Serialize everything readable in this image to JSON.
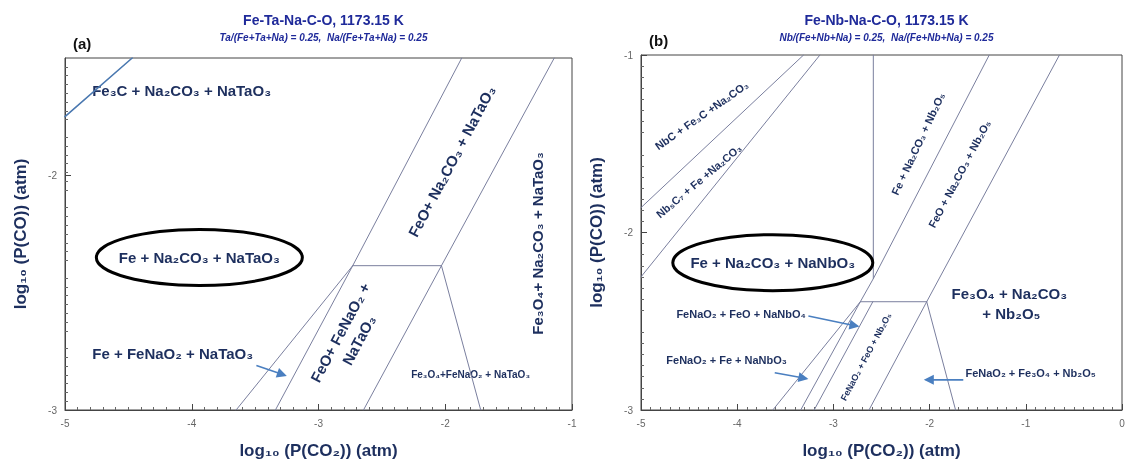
{
  "chart_data": [
    {
      "type": "line",
      "title": "Fe-Ta-Na-C-O, 1173.15 K",
      "subtitle": "Ta/(Fe+Ta+Na) = 0.25,  Na/(Fe+Ta+Na) = 0.25",
      "xlabel": "log₁₀ (P(CO₂)) (atm)",
      "ylabel": "log₁₀ (P(CO)) (atm)",
      "xlim": [
        -5,
        -1
      ],
      "ylim": [
        -3,
        -1.5
      ],
      "xticks": [
        -5,
        -4,
        -3,
        -2,
        -1
      ],
      "yticks": [
        -3,
        -2
      ],
      "grid": false,
      "marker": "none",
      "line_style": "solid",
      "series": [
        {
          "color": "#4a78b0",
          "x": [
            -5,
            -4.47
          ],
          "values": [
            -1.75,
            -1.5
          ]
        },
        {
          "color": "#7a7f9e",
          "x": [
            -1.87,
            -2.73,
            -3.34
          ],
          "values": [
            -1.5,
            -2.385,
            -3
          ]
        },
        {
          "color": "#7a7f9e",
          "x": [
            -2.73,
            -3.65
          ],
          "values": [
            -2.385,
            -3
          ]
        },
        {
          "color": "#7a7f9e",
          "x": [
            -2.73,
            -2.03
          ],
          "values": [
            -2.385,
            -2.385
          ]
        },
        {
          "color": "#7a7f9e",
          "x": [
            -1.14,
            -2.03,
            -2.645
          ],
          "values": [
            -1.5,
            -2.385,
            -3
          ]
        },
        {
          "color": "#7a7f9e",
          "x": [
            -2.03,
            -1.72
          ],
          "values": [
            -2.385,
            -3
          ]
        }
      ],
      "annotations": [
        "(a)",
        "Fe₃C + Na₂CO₃ + NaTaO₃",
        "FeO+ Na₂CO₃ + NaTaO₃",
        "Fe₃O₄+ Na₂CO₃ + NaTaO₃",
        "Fe + Na₂CO₃ + NaTaO₃",
        "FeO+ FeNaO₂ + NaTaO₃",
        "Fe + FeNaO₂ + NaTaO₃",
        "Fe₃O₄+FeNaO₂ + NaTaO₃"
      ]
    },
    {
      "type": "line",
      "title": "Fe-Nb-Na-C-O, 1173.15 K",
      "subtitle": "Nb/(Fe+Nb+Na) = 0.25,  Na/(Fe+Nb+Na) = 0.25",
      "xlabel": "log₁₀ (P(CO₂)) (atm)",
      "ylabel": "log₁₀ (P(CO)) (atm)",
      "xlim": [
        -5,
        0
      ],
      "ylim": [
        -3,
        -1
      ],
      "xticks": [
        -5,
        -4,
        -3,
        -2,
        -1,
        0
      ],
      "yticks": [
        -3,
        -2,
        -1
      ],
      "grid": false,
      "marker": "none",
      "line_style": "solid",
      "series": [
        {
          "color": "#7a7f9e",
          "x": [
            -5,
            -3.31
          ],
          "values": [
            -1.86,
            -1
          ]
        },
        {
          "color": "#7a7f9e",
          "x": [
            -5,
            -3.14
          ],
          "values": [
            -2.25,
            -1
          ]
        },
        {
          "color": "#7a7f9e",
          "x": [
            -2.585,
            -2.585,
            -2.72,
            -3.63
          ],
          "values": [
            -1,
            -2.26,
            -2.39,
            -3
          ]
        },
        {
          "color": "#7a7f9e",
          "x": [
            -1.38,
            -2.585
          ],
          "values": [
            -1,
            -2.26
          ]
        },
        {
          "color": "#7a7f9e",
          "x": [
            -2.72,
            -3.34
          ],
          "values": [
            -2.39,
            -3
          ]
        },
        {
          "color": "#7a7f9e",
          "x": [
            -2.59,
            -3.2
          ],
          "values": [
            -2.39,
            -3
          ]
        },
        {
          "color": "#7a7f9e",
          "x": [
            -2.72,
            -2.03
          ],
          "values": [
            -2.39,
            -2.39
          ]
        },
        {
          "color": "#7a7f9e",
          "x": [
            -0.65,
            -2.03,
            -2.63
          ],
          "values": [
            -1,
            -2.39,
            -3
          ]
        },
        {
          "color": "#7a7f9e",
          "x": [
            -2.03,
            -1.73
          ],
          "values": [
            -2.39,
            -3
          ]
        }
      ],
      "annotations": [
        "(b)",
        "NbC + Fe₃C +Na₂CO₃",
        "Nb₅C₇ + Fe +Na₂CO₃",
        "Fe + Na₂CO₃ + Nb₂O₅",
        "FeO + Na₂CO₃ + Nb₂O₅",
        "Fe + Na₂CO₃ + NaNbO₃",
        "Fe₃O₄ + Na₂CO₃ + Nb₂O₅",
        {
          "text": "FeNaO₂ + FeO + NaNbO₄",
          "x": -2.73,
          "y": -2.53
        },
        "FeNaO₂ + Fe + NaNbO₃",
        "FeNaO₂ + FeO + Nb₂O₅",
        "FeNaO₂ + Fe₃O₄ + Nb₂O₅"
      ]
    }
  ]
}
